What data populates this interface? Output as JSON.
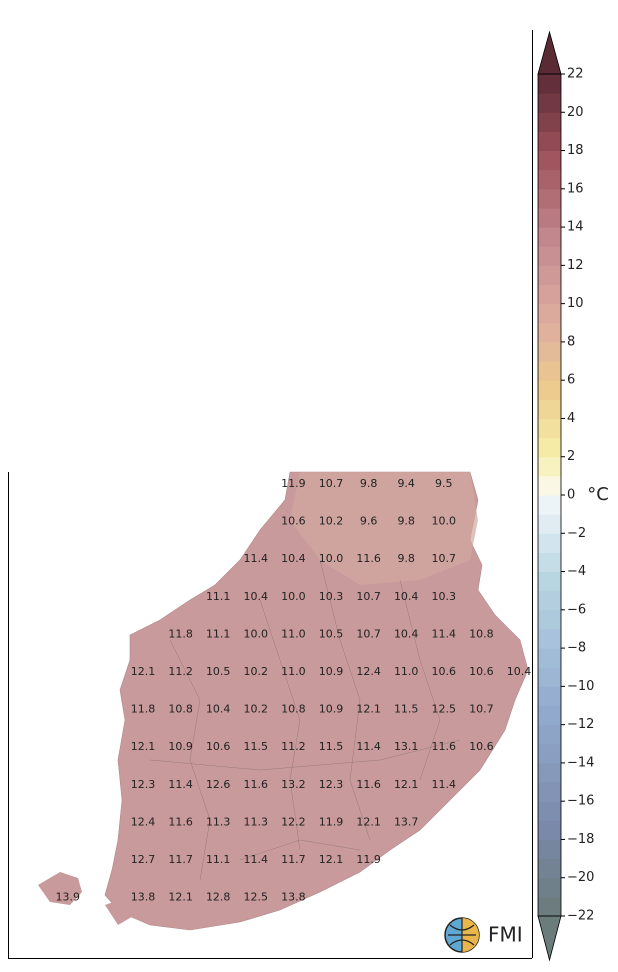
{
  "map": {
    "unit": "°C",
    "logo": "FMI",
    "colorbar": {
      "lim": [
        -22,
        22
      ],
      "ticks": [
        22,
        20,
        18,
        16,
        14,
        12,
        10,
        8,
        6,
        4,
        2,
        0,
        {
          "value": -2,
          "label": "−2"
        },
        {
          "value": -4,
          "label": "−4"
        },
        {
          "value": -6,
          "label": "−6"
        },
        {
          "value": -8,
          "label": "−8"
        },
        {
          "value": -10,
          "label": "−10"
        },
        {
          "value": -12,
          "label": "−12"
        },
        {
          "value": -14,
          "label": "−14"
        },
        {
          "value": -16,
          "label": "−16"
        },
        {
          "value": -18,
          "label": "−18"
        },
        {
          "value": -20,
          "label": "−20"
        },
        {
          "value": -22,
          "label": "−22"
        }
      ]
    },
    "rows": [
      [
        "11.9",
        "10.7",
        "9.8",
        "9.4",
        "9.5"
      ],
      [
        "10.6",
        "10.2",
        "9.6",
        "9.8",
        "10.0"
      ],
      [
        "11.4",
        "10.4",
        "10.0",
        "11.6",
        "9.8",
        "10.7"
      ],
      [
        "11.1",
        "10.4",
        "10.0",
        "10.3",
        "10.7",
        "10.4",
        "10.3"
      ],
      [
        "11.8",
        "11.1",
        "10.0",
        "11.0",
        "10.5",
        "10.7",
        "10.4",
        "11.4",
        "10.8"
      ],
      [
        "12.1",
        "11.2",
        "10.5",
        "10.2",
        "11.0",
        "10.9",
        "12.4",
        "11.0",
        "10.6",
        "10.6",
        "10.4"
      ],
      [
        "11.8",
        "10.8",
        "10.4",
        "10.2",
        "10.8",
        "10.9",
        "12.1",
        "11.5",
        "12.5",
        "10.7"
      ],
      [
        "12.1",
        "10.9",
        "10.6",
        "11.5",
        "11.2",
        "11.5",
        "11.4",
        "13.1",
        "11.6",
        "10.6"
      ],
      [
        "12.3",
        "11.4",
        "12.6",
        "11.6",
        "13.2",
        "12.3",
        "11.6",
        "12.1",
        "11.4"
      ],
      [
        "12.4",
        "11.6",
        "11.3",
        "11.3",
        "12.2",
        "11.9",
        "12.1",
        "13.7"
      ],
      [
        "12.7",
        "11.7",
        "11.1",
        "11.4",
        "11.7",
        "12.1",
        "11.9"
      ],
      [
        "13.9",
        "13.8",
        "12.1",
        "12.8",
        "12.5",
        "13.8"
      ]
    ]
  }
}
